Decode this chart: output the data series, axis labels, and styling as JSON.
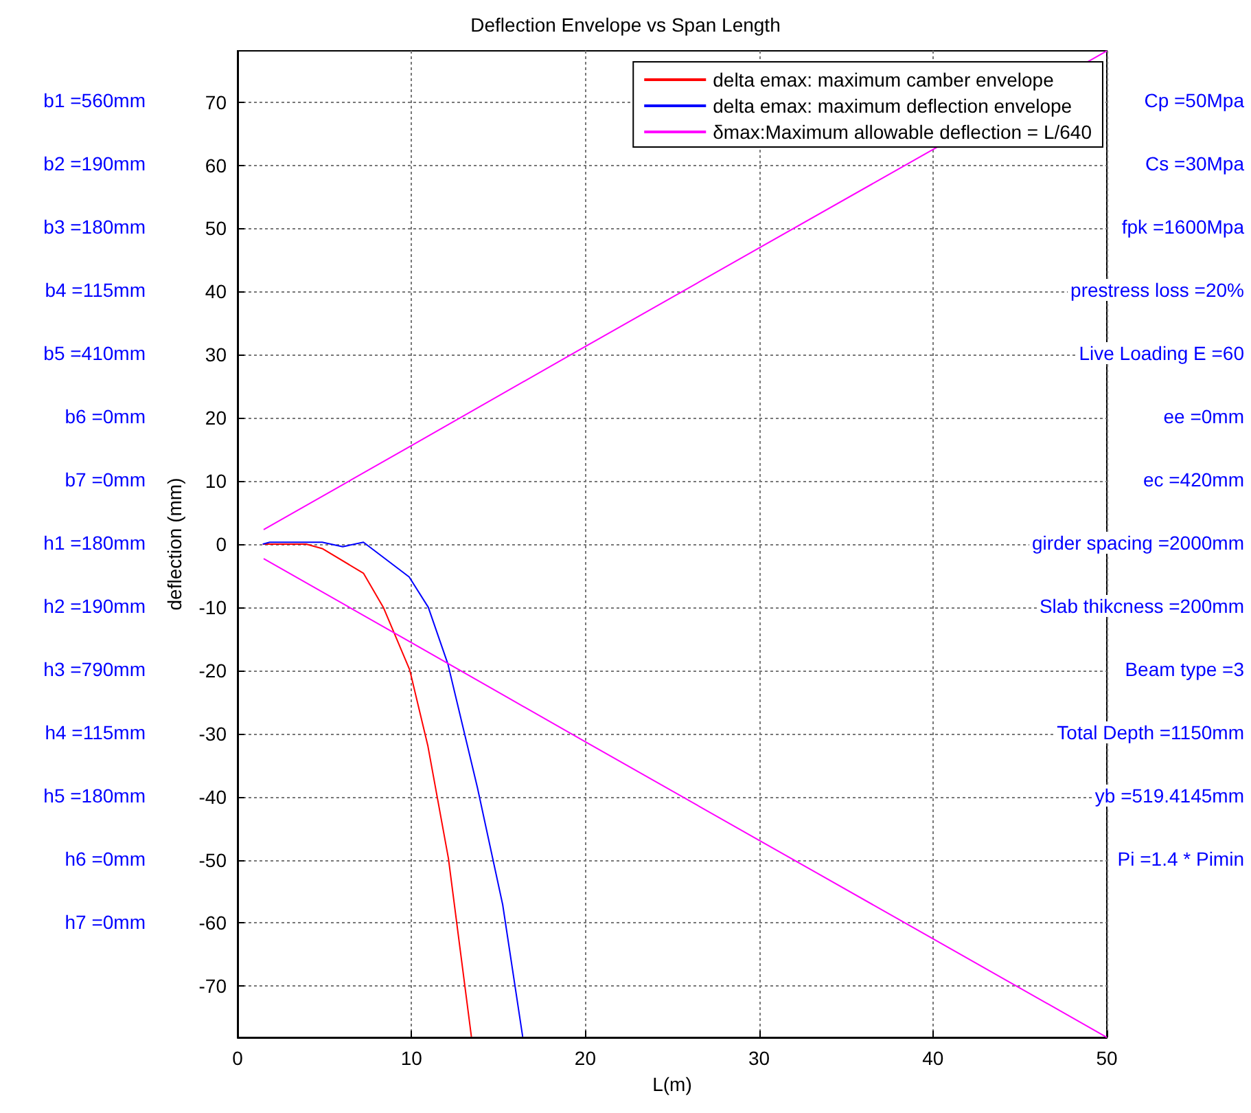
{
  "chart_data": {
    "type": "line",
    "title": "Deflection Envelope vs Span Length",
    "xlabel": "L(m)",
    "ylabel": "deflection (mm)",
    "xlim": [
      0,
      50
    ],
    "xticks": [
      0,
      10,
      20,
      30,
      40,
      50
    ],
    "ylim": [
      -78.125,
      78.125
    ],
    "yticks": [
      -70,
      -60,
      -50,
      -40,
      -30,
      -20,
      -10,
      0,
      10,
      20,
      30,
      40,
      50,
      60,
      70
    ],
    "grid": true,
    "legend": "top right",
    "marker": "none",
    "line_style": "solid",
    "series": [
      {
        "name": "delta emax: maximum camber envelope",
        "color": "#ff0000",
        "x": [
          1.45,
          3.95,
          4.87,
          7.24,
          8.4,
          9.9,
          10.95,
          12.13,
          13.45
        ],
        "values": [
          0,
          0,
          -0.7,
          -4.6,
          -10.1,
          -19.9,
          -32,
          -49.8,
          -78
        ]
      },
      {
        "name": "delta emax: maximum deflection envelope",
        "color": "#0000ff",
        "x": [
          1.45,
          1.85,
          4.87,
          6.05,
          7.24,
          9.87,
          10.97,
          12.1,
          13.8,
          15.25,
          16.4
        ],
        "values": [
          0,
          0.3,
          0.3,
          -0.4,
          0.3,
          -5.2,
          -10,
          -19,
          -38.6,
          -57.1,
          -78
        ]
      },
      {
        "name": "δmax:Maximum allowable deflection = L/640",
        "color": "#ff00ff",
        "x": [
          1.5,
          10,
          20,
          30,
          40,
          50
        ],
        "values": [
          2.3,
          15.6,
          31.3,
          46.9,
          62.5,
          78.1
        ]
      },
      {
        "color": "#ff00ff",
        "x": [
          1.5,
          10,
          20,
          30,
          40,
          50
        ],
        "values": [
          -2.3,
          -15.6,
          -31.3,
          -46.9,
          -62.5,
          -78.1
        ]
      }
    ],
    "annotations": [
      "b1 =560mm",
      "b2 =190mm",
      "b3 =180mm",
      "b4 =115mm",
      "b5 =410mm",
      "b6 =0mm",
      "b7 =0mm",
      "h1 =180mm",
      "h2 =190mm",
      "h3 =790mm",
      "h4 =115mm",
      "h5 =180mm",
      "h6 =0mm",
      "h7 =0mm",
      "Cp =50Mpa",
      "Cs =30Mpa",
      "fpk =1600Mpa",
      "prestress loss =20%",
      "Live Loading E =60",
      "ee =0mm",
      "ec =420mm",
      "girder spacing =2000mm",
      "Slab thikcness =200mm",
      "Beam type =3",
      "Total Depth =1150mm",
      "yb =519.4145mm",
      "Pi =1.4 * Pimin"
    ]
  }
}
